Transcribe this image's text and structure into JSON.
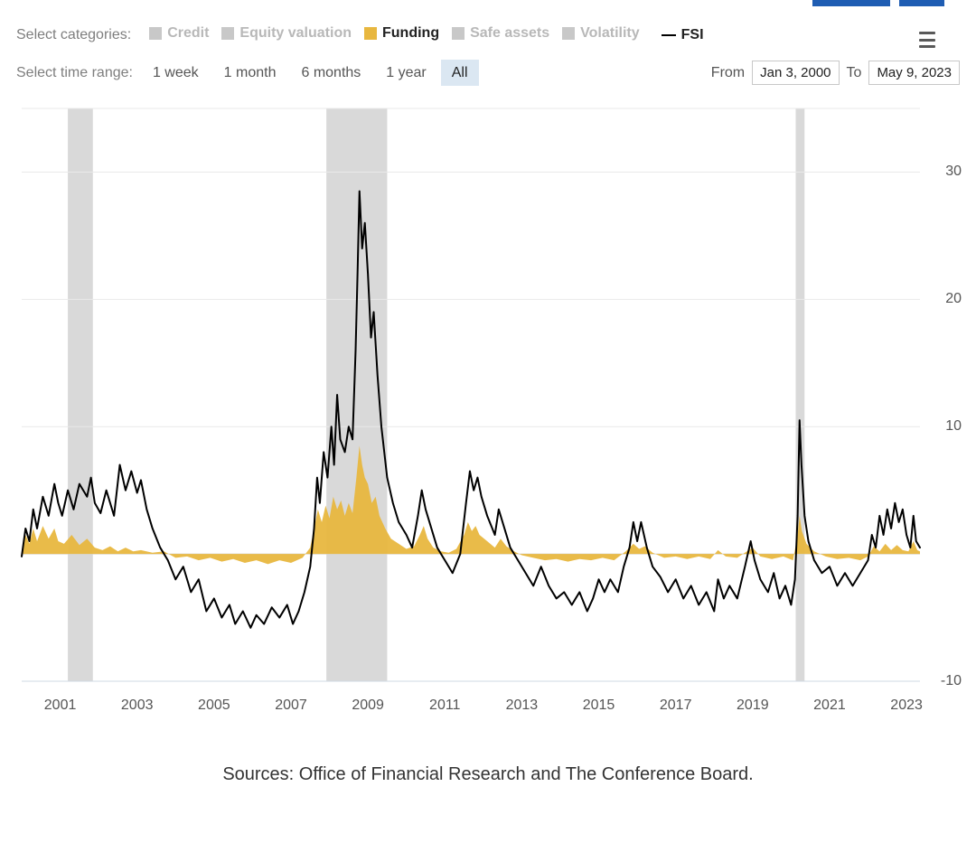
{
  "header": {
    "blue_bar_widths": [
      86,
      50
    ],
    "blue_bar_color": "#1f5db3"
  },
  "legend": {
    "label": "Select categories:",
    "items": [
      {
        "key": "credit",
        "label": "Credit",
        "color": "#c8c8c8",
        "active": false
      },
      {
        "key": "equity",
        "label": "Equity valuation",
        "color": "#c8c8c8",
        "active": false
      },
      {
        "key": "funding",
        "label": "Funding",
        "color": "#e8b73f",
        "active": true
      },
      {
        "key": "safe",
        "label": "Safe assets",
        "color": "#c8c8c8",
        "active": false
      },
      {
        "key": "volatility",
        "label": "Volatility",
        "color": "#c8c8c8",
        "active": false
      }
    ],
    "fsi_label": "FSI",
    "fsi_color": "#000000"
  },
  "time_range": {
    "label": "Select time range:",
    "options": [
      "1 week",
      "1 month",
      "6 months",
      "1 year",
      "All"
    ],
    "active": "All",
    "from_label": "From",
    "to_label": "To",
    "from_value": "Jan 3, 2000",
    "to_value": "May 9, 2023"
  },
  "chart": {
    "type": "line+area",
    "x_domain": [
      2000,
      2023.35
    ],
    "y_domain": [
      -10,
      35
    ],
    "y_ticks": [
      -10,
      10,
      20,
      30
    ],
    "x_ticks": [
      2001,
      2003,
      2005,
      2007,
      2009,
      2011,
      2013,
      2015,
      2017,
      2019,
      2021,
      2023
    ],
    "background_color": "#ffffff",
    "gridline_color": "#e9e9e9",
    "baseline_color": "#d6d6d6",
    "recession_band_color": "#d9d9d9",
    "recession_bands": [
      {
        "start": 2001.2,
        "end": 2001.85
      },
      {
        "start": 2007.92,
        "end": 2009.5
      },
      {
        "start": 2020.12,
        "end": 2020.35
      }
    ],
    "fsi": {
      "color": "#000000",
      "line_width": 2,
      "points": [
        [
          2000.0,
          -0.2
        ],
        [
          2000.1,
          2.0
        ],
        [
          2000.2,
          1.0
        ],
        [
          2000.3,
          3.5
        ],
        [
          2000.4,
          2.0
        ],
        [
          2000.55,
          4.5
        ],
        [
          2000.7,
          3.0
        ],
        [
          2000.85,
          5.5
        ],
        [
          2000.95,
          4.0
        ],
        [
          2001.05,
          3.0
        ],
        [
          2001.2,
          5.0
        ],
        [
          2001.35,
          3.5
        ],
        [
          2001.5,
          5.5
        ],
        [
          2001.7,
          4.5
        ],
        [
          2001.8,
          6.0
        ],
        [
          2001.9,
          4.0
        ],
        [
          2002.05,
          3.2
        ],
        [
          2002.2,
          5.0
        ],
        [
          2002.4,
          3.0
        ],
        [
          2002.55,
          7.0
        ],
        [
          2002.7,
          5.0
        ],
        [
          2002.85,
          6.5
        ],
        [
          2003.0,
          4.8
        ],
        [
          2003.1,
          5.8
        ],
        [
          2003.25,
          3.5
        ],
        [
          2003.4,
          2.0
        ],
        [
          2003.6,
          0.5
        ],
        [
          2003.8,
          -0.5
        ],
        [
          2004.0,
          -2.0
        ],
        [
          2004.2,
          -1.0
        ],
        [
          2004.4,
          -3.0
        ],
        [
          2004.6,
          -2.0
        ],
        [
          2004.8,
          -4.5
        ],
        [
          2005.0,
          -3.5
        ],
        [
          2005.2,
          -5.0
        ],
        [
          2005.4,
          -4.0
        ],
        [
          2005.55,
          -5.5
        ],
        [
          2005.75,
          -4.5
        ],
        [
          2005.95,
          -5.8
        ],
        [
          2006.1,
          -4.8
        ],
        [
          2006.3,
          -5.5
        ],
        [
          2006.5,
          -4.2
        ],
        [
          2006.7,
          -5.0
        ],
        [
          2006.9,
          -4.0
        ],
        [
          2007.05,
          -5.5
        ],
        [
          2007.2,
          -4.5
        ],
        [
          2007.35,
          -3.0
        ],
        [
          2007.5,
          -1.0
        ],
        [
          2007.6,
          2.0
        ],
        [
          2007.68,
          6.0
        ],
        [
          2007.75,
          4.0
        ],
        [
          2007.85,
          8.0
        ],
        [
          2007.95,
          6.0
        ],
        [
          2008.05,
          10.0
        ],
        [
          2008.12,
          7.0
        ],
        [
          2008.2,
          12.5
        ],
        [
          2008.28,
          9.0
        ],
        [
          2008.4,
          8.0
        ],
        [
          2008.5,
          10.0
        ],
        [
          2008.6,
          9.0
        ],
        [
          2008.68,
          16.0
        ],
        [
          2008.73,
          22.0
        ],
        [
          2008.78,
          28.5
        ],
        [
          2008.85,
          24.0
        ],
        [
          2008.92,
          26.0
        ],
        [
          2009.0,
          22.0
        ],
        [
          2009.08,
          17.0
        ],
        [
          2009.15,
          19.0
        ],
        [
          2009.25,
          14.0
        ],
        [
          2009.35,
          10.0
        ],
        [
          2009.5,
          6.0
        ],
        [
          2009.65,
          4.0
        ],
        [
          2009.8,
          2.5
        ],
        [
          2010.0,
          1.5
        ],
        [
          2010.15,
          0.5
        ],
        [
          2010.3,
          3.0
        ],
        [
          2010.4,
          5.0
        ],
        [
          2010.5,
          3.5
        ],
        [
          2010.65,
          2.0
        ],
        [
          2010.8,
          0.5
        ],
        [
          2011.0,
          -0.5
        ],
        [
          2011.2,
          -1.5
        ],
        [
          2011.4,
          0.0
        ],
        [
          2011.55,
          4.0
        ],
        [
          2011.65,
          6.5
        ],
        [
          2011.75,
          5.0
        ],
        [
          2011.85,
          6.0
        ],
        [
          2011.95,
          4.5
        ],
        [
          2012.1,
          3.0
        ],
        [
          2012.3,
          1.5
        ],
        [
          2012.4,
          3.5
        ],
        [
          2012.55,
          2.0
        ],
        [
          2012.7,
          0.5
        ],
        [
          2012.9,
          -0.5
        ],
        [
          2013.1,
          -1.5
        ],
        [
          2013.3,
          -2.5
        ],
        [
          2013.5,
          -1.0
        ],
        [
          2013.7,
          -2.5
        ],
        [
          2013.9,
          -3.5
        ],
        [
          2014.1,
          -3.0
        ],
        [
          2014.3,
          -4.0
        ],
        [
          2014.5,
          -3.0
        ],
        [
          2014.7,
          -4.5
        ],
        [
          2014.85,
          -3.5
        ],
        [
          2015.0,
          -2.0
        ],
        [
          2015.15,
          -3.0
        ],
        [
          2015.3,
          -2.0
        ],
        [
          2015.5,
          -3.0
        ],
        [
          2015.65,
          -1.0
        ],
        [
          2015.8,
          0.5
        ],
        [
          2015.9,
          2.5
        ],
        [
          2016.0,
          1.0
        ],
        [
          2016.1,
          2.5
        ],
        [
          2016.25,
          0.5
        ],
        [
          2016.4,
          -1.0
        ],
        [
          2016.6,
          -1.8
        ],
        [
          2016.8,
          -3.0
        ],
        [
          2017.0,
          -2.0
        ],
        [
          2017.2,
          -3.5
        ],
        [
          2017.4,
          -2.5
        ],
        [
          2017.6,
          -4.0
        ],
        [
          2017.8,
          -3.0
        ],
        [
          2018.0,
          -4.5
        ],
        [
          2018.1,
          -2.0
        ],
        [
          2018.25,
          -3.5
        ],
        [
          2018.4,
          -2.5
        ],
        [
          2018.6,
          -3.5
        ],
        [
          2018.8,
          -1.0
        ],
        [
          2018.95,
          1.0
        ],
        [
          2019.05,
          -0.5
        ],
        [
          2019.2,
          -2.0
        ],
        [
          2019.4,
          -3.0
        ],
        [
          2019.55,
          -1.5
        ],
        [
          2019.7,
          -3.5
        ],
        [
          2019.85,
          -2.5
        ],
        [
          2020.0,
          -4.0
        ],
        [
          2020.1,
          -2.0
        ],
        [
          2020.17,
          3.0
        ],
        [
          2020.22,
          10.5
        ],
        [
          2020.27,
          7.0
        ],
        [
          2020.35,
          3.0
        ],
        [
          2020.45,
          1.0
        ],
        [
          2020.6,
          -0.5
        ],
        [
          2020.8,
          -1.5
        ],
        [
          2021.0,
          -1.0
        ],
        [
          2021.2,
          -2.5
        ],
        [
          2021.4,
          -1.5
        ],
        [
          2021.6,
          -2.5
        ],
        [
          2021.8,
          -1.5
        ],
        [
          2022.0,
          -0.5
        ],
        [
          2022.1,
          1.5
        ],
        [
          2022.2,
          0.5
        ],
        [
          2022.3,
          3.0
        ],
        [
          2022.4,
          1.5
        ],
        [
          2022.5,
          3.5
        ],
        [
          2022.6,
          2.0
        ],
        [
          2022.7,
          4.0
        ],
        [
          2022.8,
          2.5
        ],
        [
          2022.9,
          3.5
        ],
        [
          2023.0,
          1.5
        ],
        [
          2023.1,
          0.5
        ],
        [
          2023.18,
          3.0
        ],
        [
          2023.25,
          1.0
        ],
        [
          2023.35,
          0.5
        ]
      ]
    },
    "funding": {
      "fill_color": "#e8b73f",
      "fill_opacity": 0.95,
      "points": [
        [
          2000.0,
          0.3
        ],
        [
          2000.1,
          1.5
        ],
        [
          2000.2,
          0.8
        ],
        [
          2000.3,
          2.0
        ],
        [
          2000.4,
          1.0
        ],
        [
          2000.55,
          2.2
        ],
        [
          2000.7,
          1.2
        ],
        [
          2000.85,
          2.0
        ],
        [
          2000.95,
          1.0
        ],
        [
          2001.1,
          0.8
        ],
        [
          2001.3,
          1.5
        ],
        [
          2001.5,
          0.7
        ],
        [
          2001.7,
          1.2
        ],
        [
          2001.9,
          0.5
        ],
        [
          2002.1,
          0.3
        ],
        [
          2002.3,
          0.6
        ],
        [
          2002.5,
          0.2
        ],
        [
          2002.7,
          0.5
        ],
        [
          2002.9,
          0.2
        ],
        [
          2003.1,
          0.3
        ],
        [
          2003.4,
          0.1
        ],
        [
          2003.7,
          0.2
        ],
        [
          2004.0,
          -0.3
        ],
        [
          2004.3,
          -0.2
        ],
        [
          2004.6,
          -0.5
        ],
        [
          2004.9,
          -0.3
        ],
        [
          2005.2,
          -0.6
        ],
        [
          2005.5,
          -0.4
        ],
        [
          2005.8,
          -0.7
        ],
        [
          2006.1,
          -0.5
        ],
        [
          2006.4,
          -0.8
        ],
        [
          2006.7,
          -0.5
        ],
        [
          2007.0,
          -0.7
        ],
        [
          2007.3,
          -0.3
        ],
        [
          2007.5,
          0.5
        ],
        [
          2007.6,
          2.0
        ],
        [
          2007.7,
          3.5
        ],
        [
          2007.8,
          2.5
        ],
        [
          2007.9,
          3.8
        ],
        [
          2008.0,
          2.8
        ],
        [
          2008.1,
          4.5
        ],
        [
          2008.2,
          3.5
        ],
        [
          2008.3,
          4.2
        ],
        [
          2008.4,
          3.0
        ],
        [
          2008.5,
          4.0
        ],
        [
          2008.6,
          3.2
        ],
        [
          2008.7,
          6.0
        ],
        [
          2008.78,
          8.5
        ],
        [
          2008.85,
          7.0
        ],
        [
          2008.92,
          6.0
        ],
        [
          2009.0,
          5.5
        ],
        [
          2009.1,
          4.0
        ],
        [
          2009.2,
          4.5
        ],
        [
          2009.3,
          3.0
        ],
        [
          2009.45,
          2.0
        ],
        [
          2009.6,
          1.2
        ],
        [
          2009.8,
          0.8
        ],
        [
          2010.0,
          0.4
        ],
        [
          2010.2,
          0.6
        ],
        [
          2010.35,
          1.5
        ],
        [
          2010.45,
          2.2
        ],
        [
          2010.55,
          1.2
        ],
        [
          2010.7,
          0.5
        ],
        [
          2010.9,
          0.2
        ],
        [
          2011.1,
          0.1
        ],
        [
          2011.3,
          0.4
        ],
        [
          2011.5,
          1.5
        ],
        [
          2011.6,
          2.5
        ],
        [
          2011.7,
          1.8
        ],
        [
          2011.8,
          2.2
        ],
        [
          2011.9,
          1.5
        ],
        [
          2012.1,
          1.0
        ],
        [
          2012.3,
          0.5
        ],
        [
          2012.45,
          1.2
        ],
        [
          2012.6,
          0.6
        ],
        [
          2012.8,
          0.2
        ],
        [
          2013.0,
          -0.1
        ],
        [
          2013.3,
          -0.3
        ],
        [
          2013.6,
          -0.5
        ],
        [
          2013.9,
          -0.4
        ],
        [
          2014.2,
          -0.6
        ],
        [
          2014.5,
          -0.4
        ],
        [
          2014.8,
          -0.5
        ],
        [
          2015.1,
          -0.3
        ],
        [
          2015.4,
          -0.5
        ],
        [
          2015.7,
          0.2
        ],
        [
          2015.9,
          0.8
        ],
        [
          2016.05,
          0.4
        ],
        [
          2016.2,
          0.6
        ],
        [
          2016.4,
          0.1
        ],
        [
          2016.7,
          -0.3
        ],
        [
          2017.0,
          -0.2
        ],
        [
          2017.3,
          -0.4
        ],
        [
          2017.6,
          -0.2
        ],
        [
          2017.9,
          -0.4
        ],
        [
          2018.1,
          0.3
        ],
        [
          2018.3,
          -0.2
        ],
        [
          2018.6,
          -0.3
        ],
        [
          2018.85,
          0.2
        ],
        [
          2019.0,
          0.5
        ],
        [
          2019.2,
          -0.2
        ],
        [
          2019.5,
          -0.4
        ],
        [
          2019.8,
          -0.2
        ],
        [
          2020.05,
          -0.5
        ],
        [
          2020.17,
          1.5
        ],
        [
          2020.22,
          3.0
        ],
        [
          2020.28,
          1.8
        ],
        [
          2020.4,
          0.8
        ],
        [
          2020.6,
          0.2
        ],
        [
          2020.9,
          -0.2
        ],
        [
          2021.2,
          -0.4
        ],
        [
          2021.5,
          -0.3
        ],
        [
          2021.8,
          -0.5
        ],
        [
          2022.0,
          -0.2
        ],
        [
          2022.15,
          0.6
        ],
        [
          2022.3,
          0.2
        ],
        [
          2022.45,
          0.8
        ],
        [
          2022.6,
          0.3
        ],
        [
          2022.75,
          0.7
        ],
        [
          2022.9,
          0.3
        ],
        [
          2023.05,
          0.2
        ],
        [
          2023.18,
          1.0
        ],
        [
          2023.28,
          0.3
        ],
        [
          2023.35,
          0.2
        ]
      ]
    }
  },
  "sources_text": "Sources: Office of Financial Research and The Conference Board."
}
